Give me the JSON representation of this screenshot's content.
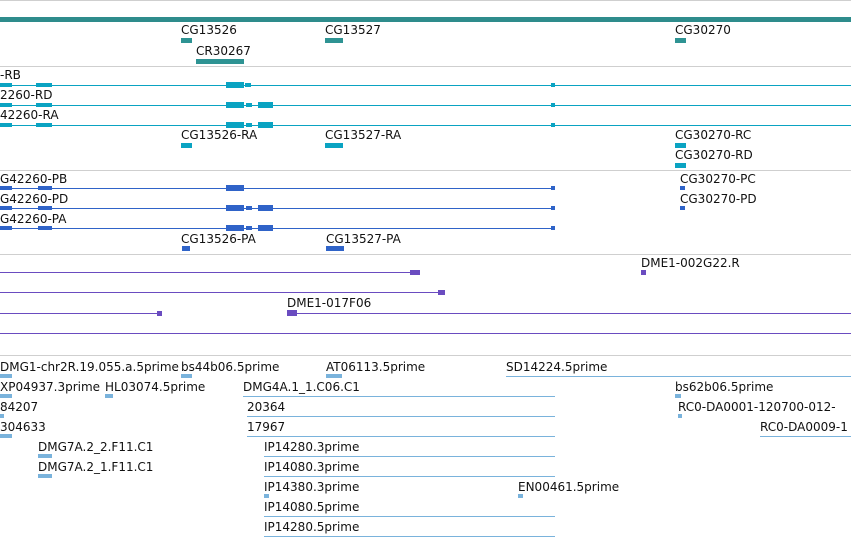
{
  "tracks": {
    "genes": {
      "labels": [
        "CG13526",
        "CG13527",
        "CG30270",
        "CR30267"
      ]
    },
    "transcripts": {
      "labels": [
        "-RB",
        "2260-RD",
        "42260-RA",
        "CG13526-RA",
        "CG13527-RA",
        "CG30270-RC",
        "CG30270-RD"
      ]
    },
    "proteins": {
      "labels": [
        "G42260-PB",
        "G42260-PD",
        "G42260-PA",
        "CG13526-PA",
        "CG13527-PA",
        "CG30270-PC",
        "CG30270-PD"
      ]
    },
    "bac_ends": {
      "labels": [
        "DME1-002G22.R",
        "DME1-017F06"
      ]
    },
    "ests": {
      "labels": [
        "DMG1-chr2R.19.055.a.5prime",
        "bs44b06.5prime",
        "AT06113.5prime",
        "SD14224.5prime",
        "XP04937.3prime",
        "HL03074.5prime",
        "DMG4A.1_1.C06.C1",
        "bs62b06.5prime",
        "84207",
        "20364",
        "RC0-DA0001-120700-012-",
        "304633",
        "17967",
        "RC0-DA0009-1",
        "DMG7A.2_2.F11.C1",
        "IP14280.3prime",
        "DMG7A.2_1.F11.C1",
        "IP14080.3prime",
        "IP14380.3prime",
        "EN00461.5prime",
        "IP14080.5prime",
        "IP14280.5prime"
      ]
    }
  },
  "colors": {
    "gene_band": "#2e8c8c",
    "gene": "#2e9393",
    "transcript": "#0aa3c2",
    "protein": "#2f63c8",
    "bac_end": "#6a4cc0",
    "est": "#7ab3dc",
    "separator": "#cfcfcf"
  }
}
